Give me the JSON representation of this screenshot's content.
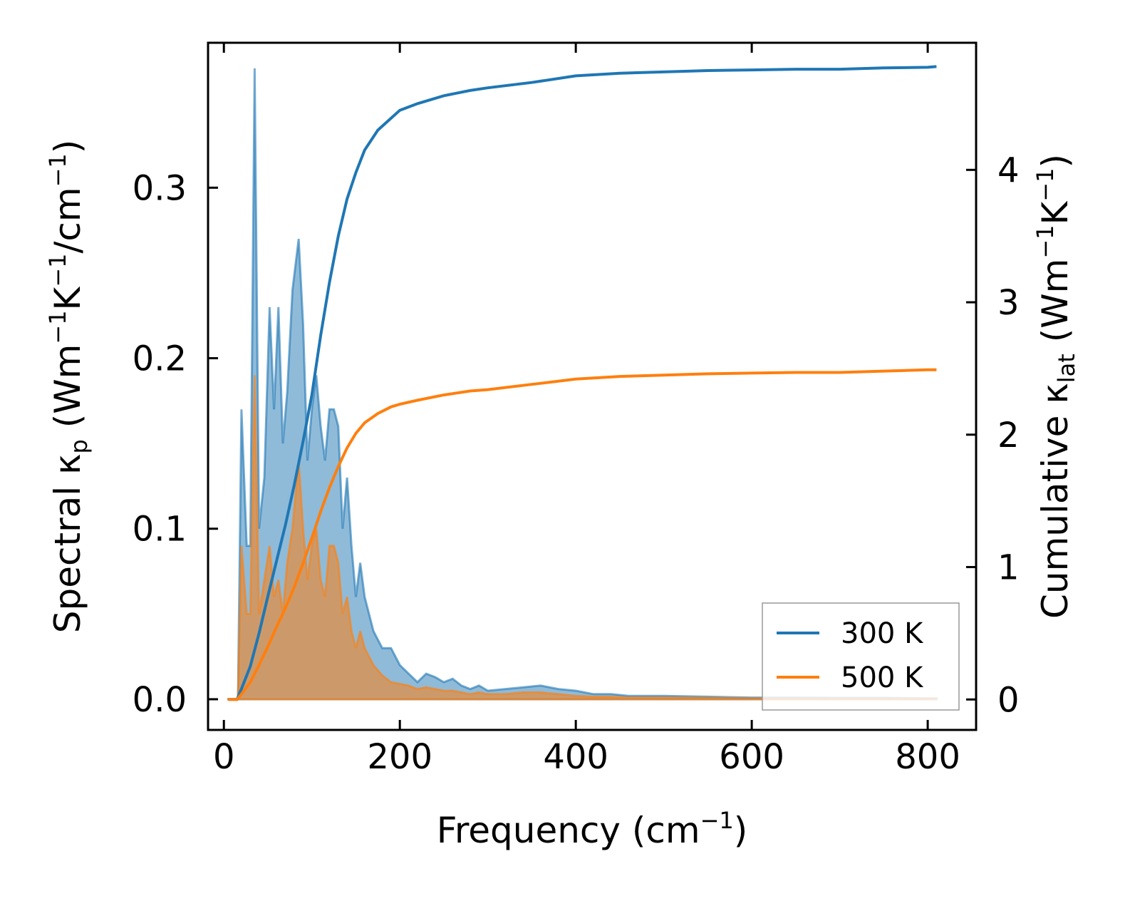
{
  "chart_data": {
    "type": "line",
    "title": "",
    "xlabel": "Frequency (cm",
    "xlabel_sup": "−1",
    "xlabel_end": ")",
    "ylabel_left": "Spectral κ",
    "ylabel_left_sub": "p",
    "ylabel_left_units": " (Wm",
    "ylabel_left_sup1": "−1",
    "ylabel_left_mid": "K",
    "ylabel_left_sup2": "−1",
    "ylabel_left_end": "/cm",
    "ylabel_left_sup3": "−1",
    "ylabel_left_close": ")",
    "ylabel_right": "Cumulative κ",
    "ylabel_right_sub": "lat",
    "ylabel_right_units": " (Wm",
    "ylabel_right_sup1": "−1",
    "ylabel_right_mid": "K",
    "ylabel_right_sup2": "−1",
    "ylabel_right_close": ")",
    "xlim": [
      -18,
      855
    ],
    "ylim_left": [
      -0.018,
      0.385
    ],
    "ylim_right": [
      -0.23,
      4.96
    ],
    "xticks": [
      0,
      200,
      400,
      600,
      800
    ],
    "xtick_labels": [
      "0",
      "200",
      "400",
      "600",
      "800"
    ],
    "yticks_left": [
      0.0,
      0.1,
      0.2,
      0.3
    ],
    "ytick_labels_left": [
      "0.0",
      "0.1",
      "0.2",
      "0.3"
    ],
    "yticks_right": [
      0,
      1,
      2,
      3,
      4
    ],
    "ytick_labels_right": [
      "0",
      "1",
      "2",
      "3",
      "4"
    ],
    "legend_position": "lower-right",
    "colors": {
      "s300": "#1f77b4",
      "s500": "#ff7f0e",
      "fill300": "#1f77b4",
      "fill500": "#ff7f0e"
    },
    "series": [
      {
        "name": "300 K",
        "color": "#1f77b4",
        "spectral": [
          [
            5,
            0
          ],
          [
            12,
            0
          ],
          [
            16,
            0
          ],
          [
            20,
            0.17
          ],
          [
            26,
            0.09
          ],
          [
            30,
            0.09
          ],
          [
            35,
            0.37
          ],
          [
            40,
            0.1
          ],
          [
            46,
            0.13
          ],
          [
            52,
            0.23
          ],
          [
            57,
            0.17
          ],
          [
            62,
            0.23
          ],
          [
            67,
            0.15
          ],
          [
            72,
            0.18
          ],
          [
            78,
            0.24
          ],
          [
            85,
            0.27
          ],
          [
            90,
            0.22
          ],
          [
            95,
            0.14
          ],
          [
            100,
            0.17
          ],
          [
            105,
            0.19
          ],
          [
            110,
            0.16
          ],
          [
            115,
            0.14
          ],
          [
            120,
            0.17
          ],
          [
            125,
            0.17
          ],
          [
            130,
            0.16
          ],
          [
            135,
            0.1
          ],
          [
            140,
            0.13
          ],
          [
            145,
            0.09
          ],
          [
            150,
            0.06
          ],
          [
            155,
            0.08
          ],
          [
            160,
            0.06
          ],
          [
            170,
            0.04
          ],
          [
            180,
            0.03
          ],
          [
            190,
            0.03
          ],
          [
            200,
            0.02
          ],
          [
            210,
            0.015
          ],
          [
            220,
            0.01
          ],
          [
            230,
            0.015
          ],
          [
            240,
            0.013
          ],
          [
            250,
            0.01
          ],
          [
            260,
            0.012
          ],
          [
            270,
            0.008
          ],
          [
            280,
            0.006
          ],
          [
            290,
            0.008
          ],
          [
            300,
            0.005
          ],
          [
            320,
            0.006
          ],
          [
            340,
            0.007
          ],
          [
            360,
            0.008
          ],
          [
            380,
            0.006
          ],
          [
            400,
            0.005
          ],
          [
            420,
            0.003
          ],
          [
            440,
            0.003
          ],
          [
            460,
            0.002
          ],
          [
            500,
            0.002
          ],
          [
            550,
            0.0015
          ],
          [
            600,
            0.001
          ],
          [
            650,
            0.001
          ],
          [
            700,
            0.0008
          ],
          [
            750,
            0.0008
          ],
          [
            800,
            0.0005
          ],
          [
            810,
            0.0005
          ]
        ],
        "cumulative": [
          [
            5,
            0
          ],
          [
            15,
            0
          ],
          [
            20,
            0.08
          ],
          [
            30,
            0.25
          ],
          [
            40,
            0.5
          ],
          [
            50,
            0.78
          ],
          [
            60,
            1.05
          ],
          [
            70,
            1.32
          ],
          [
            80,
            1.62
          ],
          [
            90,
            1.95
          ],
          [
            100,
            2.3
          ],
          [
            110,
            2.75
          ],
          [
            120,
            3.15
          ],
          [
            130,
            3.5
          ],
          [
            140,
            3.78
          ],
          [
            150,
            3.98
          ],
          [
            160,
            4.15
          ],
          [
            175,
            4.3
          ],
          [
            190,
            4.39
          ],
          [
            200,
            4.45
          ],
          [
            220,
            4.5
          ],
          [
            250,
            4.56
          ],
          [
            280,
            4.6
          ],
          [
            300,
            4.62
          ],
          [
            350,
            4.66
          ],
          [
            400,
            4.71
          ],
          [
            450,
            4.73
          ],
          [
            500,
            4.74
          ],
          [
            550,
            4.75
          ],
          [
            600,
            4.755
          ],
          [
            650,
            4.76
          ],
          [
            700,
            4.76
          ],
          [
            750,
            4.77
          ],
          [
            800,
            4.775
          ],
          [
            810,
            4.78
          ]
        ]
      },
      {
        "name": "500 K",
        "color": "#ff7f0e",
        "spectral": [
          [
            5,
            0
          ],
          [
            12,
            0
          ],
          [
            16,
            0
          ],
          [
            20,
            0.09
          ],
          [
            26,
            0.05
          ],
          [
            30,
            0.05
          ],
          [
            35,
            0.19
          ],
          [
            40,
            0.05
          ],
          [
            46,
            0.07
          ],
          [
            52,
            0.09
          ],
          [
            57,
            0.06
          ],
          [
            62,
            0.07
          ],
          [
            67,
            0.05
          ],
          [
            72,
            0.08
          ],
          [
            78,
            0.1
          ],
          [
            85,
            0.14
          ],
          [
            90,
            0.1
          ],
          [
            95,
            0.07
          ],
          [
            100,
            0.09
          ],
          [
            105,
            0.1
          ],
          [
            110,
            0.07
          ],
          [
            115,
            0.06
          ],
          [
            120,
            0.09
          ],
          [
            125,
            0.09
          ],
          [
            130,
            0.08
          ],
          [
            135,
            0.05
          ],
          [
            140,
            0.06
          ],
          [
            145,
            0.04
          ],
          [
            150,
            0.03
          ],
          [
            155,
            0.04
          ],
          [
            160,
            0.03
          ],
          [
            170,
            0.02
          ],
          [
            180,
            0.014
          ],
          [
            190,
            0.01
          ],
          [
            200,
            0.009
          ],
          [
            210,
            0.008
          ],
          [
            220,
            0.006
          ],
          [
            230,
            0.007
          ],
          [
            240,
            0.006
          ],
          [
            250,
            0.005
          ],
          [
            260,
            0.005
          ],
          [
            270,
            0.004
          ],
          [
            280,
            0.003
          ],
          [
            290,
            0.004
          ],
          [
            300,
            0.003
          ],
          [
            320,
            0.003
          ],
          [
            340,
            0.004
          ],
          [
            360,
            0.004
          ],
          [
            380,
            0.003
          ],
          [
            400,
            0.002
          ],
          [
            420,
            0.0015
          ],
          [
            440,
            0.0015
          ],
          [
            460,
            0.001
          ],
          [
            500,
            0.001
          ],
          [
            550,
            0.0008
          ],
          [
            600,
            0.0005
          ],
          [
            650,
            0.0005
          ],
          [
            700,
            0.0004
          ],
          [
            750,
            0.0004
          ],
          [
            800,
            0.0003
          ],
          [
            810,
            0.0003
          ]
        ],
        "cumulative": [
          [
            5,
            0
          ],
          [
            15,
            0
          ],
          [
            20,
            0.04
          ],
          [
            30,
            0.13
          ],
          [
            40,
            0.26
          ],
          [
            50,
            0.4
          ],
          [
            60,
            0.55
          ],
          [
            70,
            0.69
          ],
          [
            80,
            0.85
          ],
          [
            90,
            1.03
          ],
          [
            100,
            1.22
          ],
          [
            110,
            1.42
          ],
          [
            120,
            1.6
          ],
          [
            130,
            1.76
          ],
          [
            140,
            1.9
          ],
          [
            150,
            2.01
          ],
          [
            160,
            2.09
          ],
          [
            175,
            2.16
          ],
          [
            190,
            2.21
          ],
          [
            200,
            2.23
          ],
          [
            220,
            2.26
          ],
          [
            250,
            2.3
          ],
          [
            280,
            2.33
          ],
          [
            300,
            2.34
          ],
          [
            350,
            2.38
          ],
          [
            400,
            2.42
          ],
          [
            450,
            2.44
          ],
          [
            500,
            2.45
          ],
          [
            550,
            2.46
          ],
          [
            600,
            2.465
          ],
          [
            650,
            2.47
          ],
          [
            700,
            2.47
          ],
          [
            750,
            2.48
          ],
          [
            800,
            2.49
          ],
          [
            810,
            2.49
          ]
        ]
      }
    ],
    "legend": [
      {
        "label": "300 K",
        "color": "#1f77b4"
      },
      {
        "label": "500 K",
        "color": "#ff7f0e"
      }
    ]
  }
}
